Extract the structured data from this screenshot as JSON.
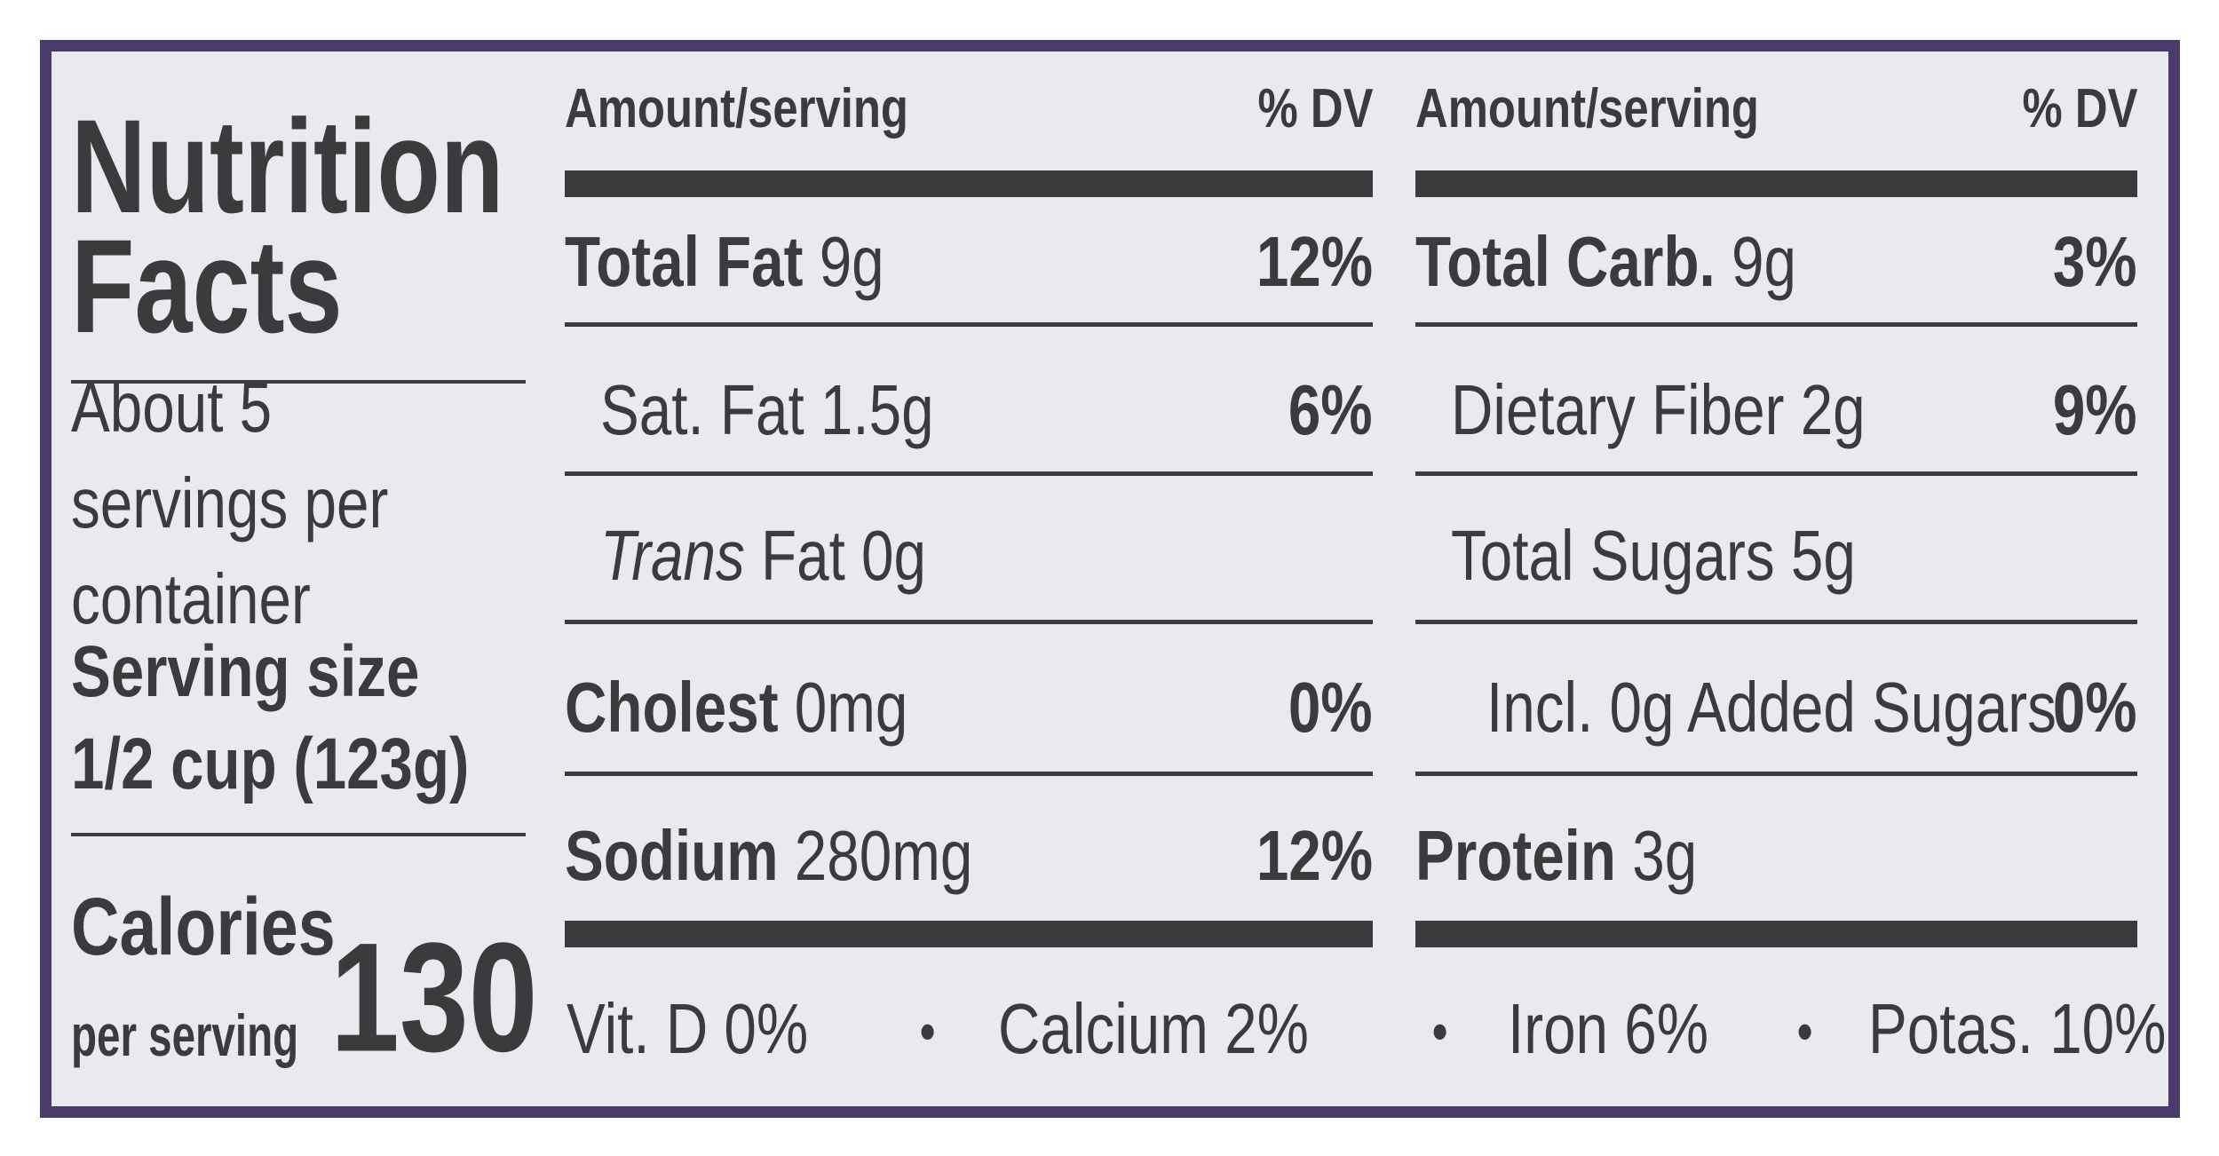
{
  "title": "Nutrition Facts",
  "servings": "About 5 servings per container",
  "serving_size": {
    "label": "Serving size",
    "amount": "1/2 cup (123g)"
  },
  "calories": {
    "label": "Calories",
    "per": "per serving",
    "value": 130
  },
  "columns": [
    {
      "header_amount": "Amount/serving",
      "header_dv": "% DV",
      "rows": [
        {
          "name": "Total Fat",
          "text": "9g",
          "dv": "12%"
        },
        {
          "text": "Sat. Fat 1.5g",
          "dv": "6%",
          "indent": true
        },
        {
          "name": "Trans",
          "italic": true,
          "text": "Fat 0g",
          "indent": true
        },
        {
          "name": "Cholest",
          "text": "0mg",
          "dv": "0%"
        },
        {
          "name": "Sodium",
          "text": "280mg",
          "dv": "12%"
        }
      ]
    },
    {
      "header_amount": "Amount/serving",
      "header_dv": "% DV",
      "rows": [
        {
          "name": "Total Carb.",
          "text": "9g",
          "dv": "3%"
        },
        {
          "text": "Dietary Fiber 2g",
          "dv": "9%",
          "indent": true
        },
        {
          "text": "Total Sugars 5g",
          "indent": true
        },
        {
          "text": "Incl. 0g Added Sugars",
          "dv": "0%",
          "indent": true,
          "indent2": true
        },
        {
          "name": "Protein",
          "text": "3g"
        }
      ]
    }
  ],
  "vitamins": [
    "Vit. D 0%",
    "Calcium 2%",
    "Iron 6%",
    "Potas. 10%"
  ]
}
